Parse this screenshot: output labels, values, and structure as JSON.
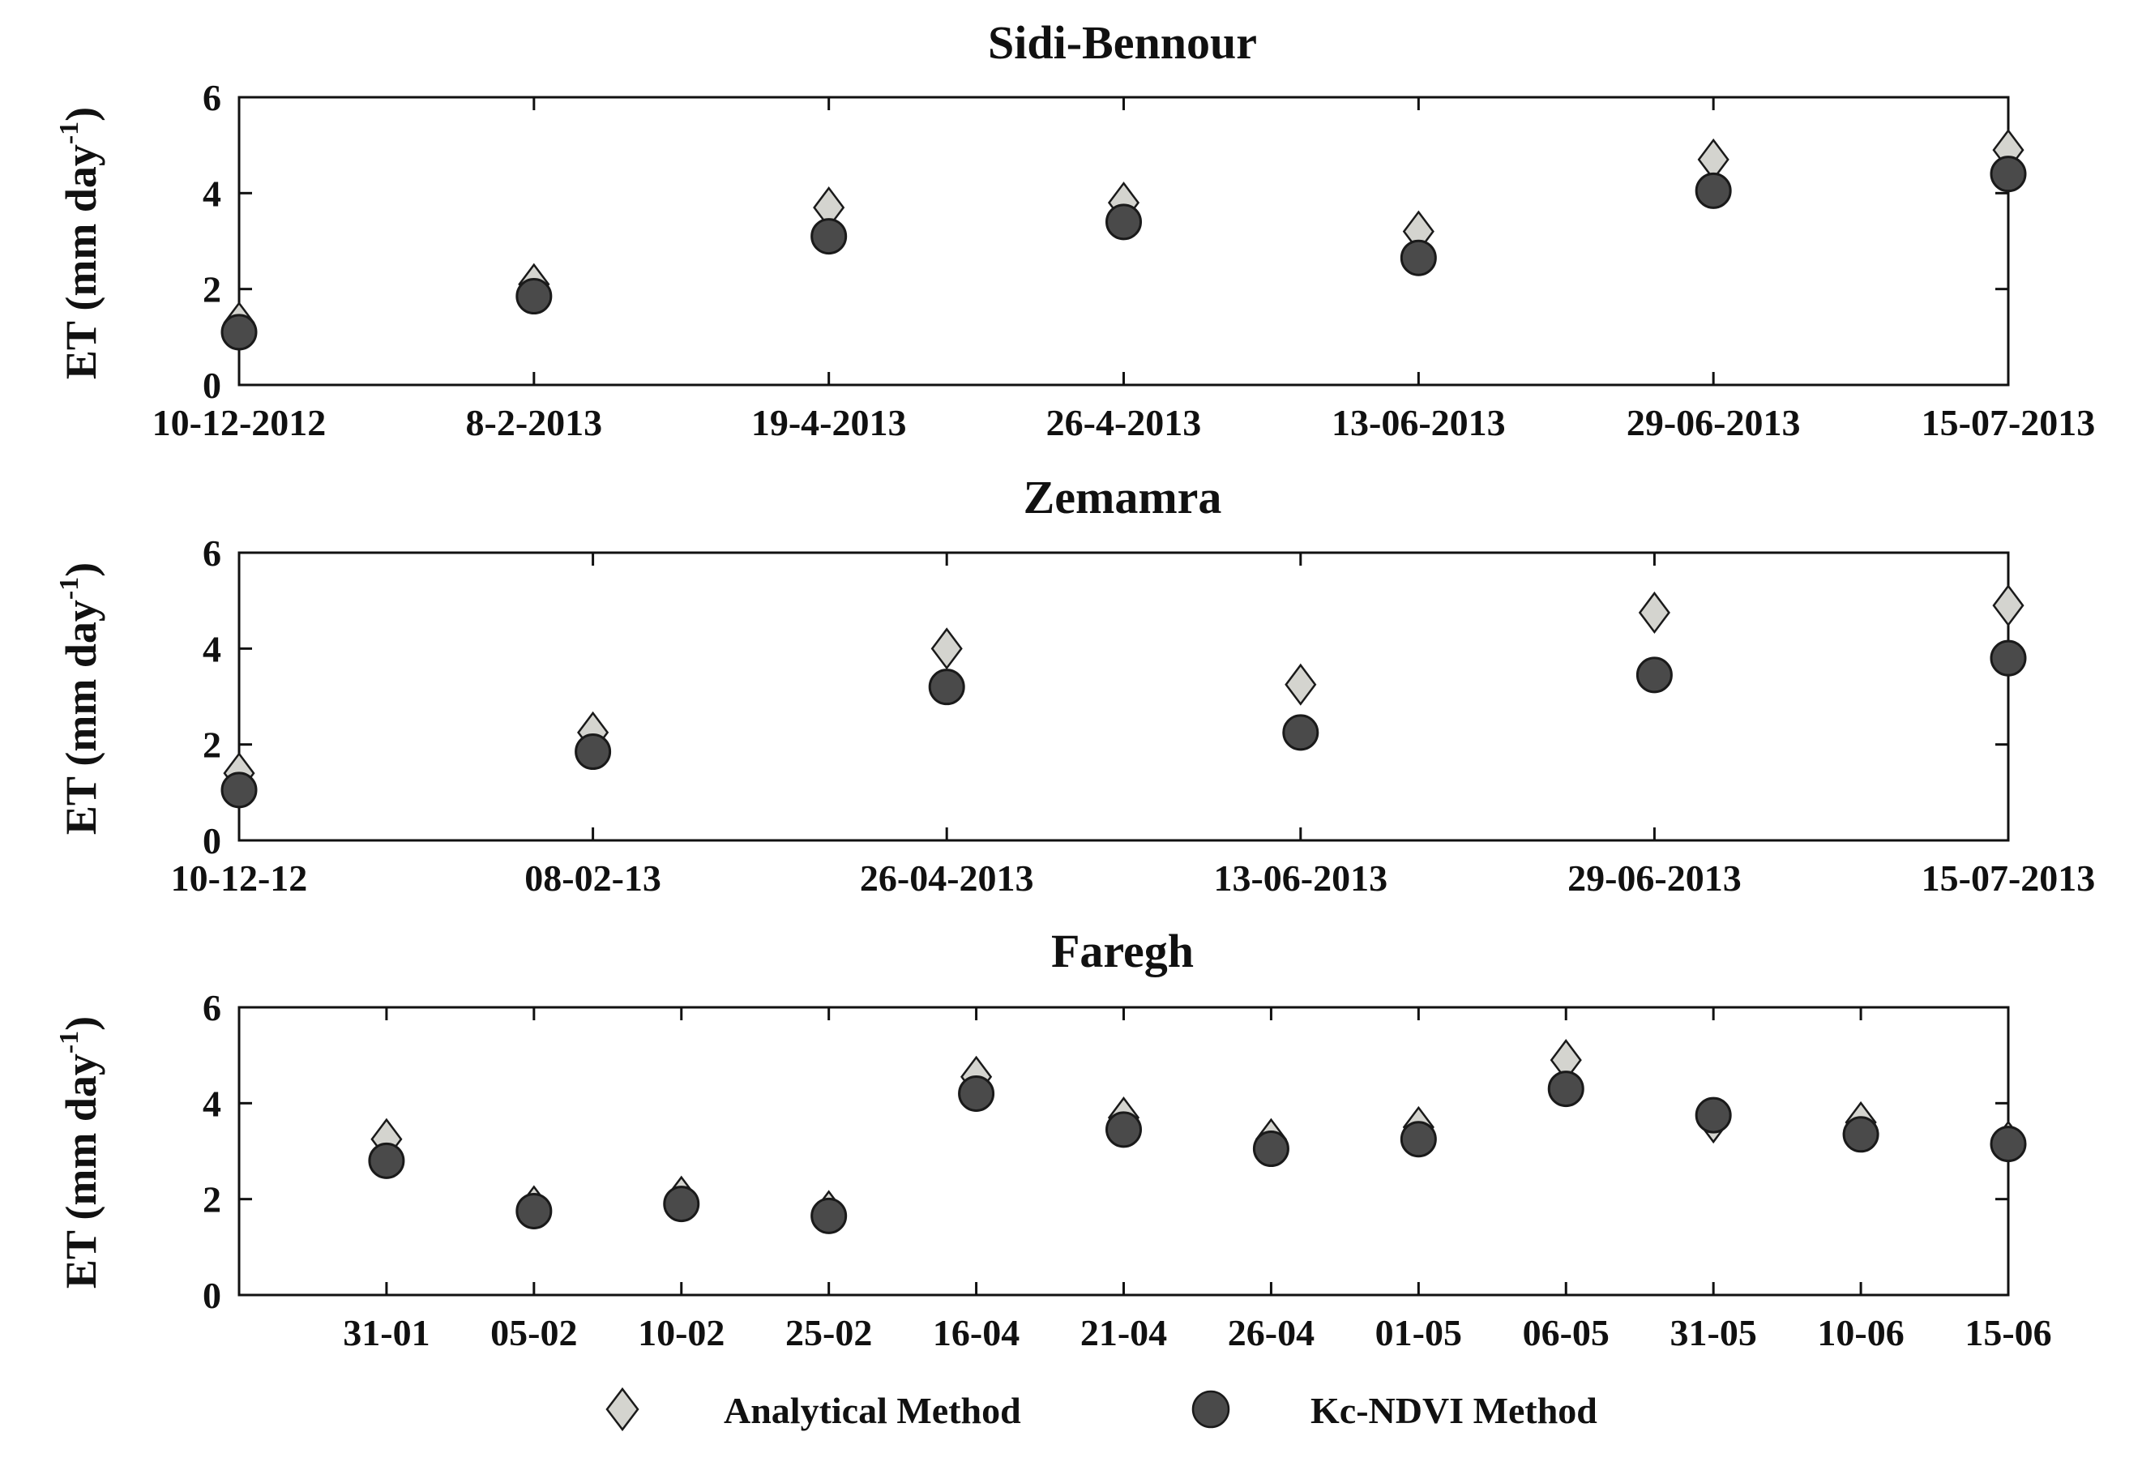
{
  "colors": {
    "analytical_fill": "#d4d4cf",
    "kcndvi_fill": "#4a4a4a",
    "marker_stroke": "#1a1a1a",
    "axis": "#111111",
    "text": "#111111"
  },
  "legend": {
    "analytical_label": "Analytical Method",
    "analytical_icon": "diamond-marker-icon",
    "kcndvi_label": "Kc-NDVI Method",
    "kcndvi_icon": "circle-marker-icon"
  },
  "chart_data": [
    {
      "type": "scatter",
      "title": "Sidi-Bennour",
      "ylabel": "ET (mm day-1)",
      "ylabel_main": "ET (mm day",
      "ylabel_sup": "-1",
      "ylabel_close": ")",
      "ylim": [
        0,
        6
      ],
      "yticks": [
        0,
        2,
        4,
        6
      ],
      "categories": [
        "10-12-2012",
        "8-2-2013",
        "19-4-2013",
        "26-4-2013",
        "13-06-2013",
        "29-06-2013",
        "15-07-2013"
      ],
      "category_positions": [
        0,
        1,
        2,
        3,
        4,
        5,
        6
      ],
      "xlim": [
        0,
        6
      ],
      "x_ticks_labelled": [
        0,
        1,
        2,
        3,
        4,
        5,
        6
      ],
      "series": [
        {
          "name": "Analytical Method",
          "marker": "diamond",
          "x": [
            0,
            1,
            2,
            3,
            4,
            5,
            6
          ],
          "values": [
            1.3,
            2.1,
            3.7,
            3.8,
            3.2,
            4.7,
            4.9
          ]
        },
        {
          "name": "Kc-NDVI Method",
          "marker": "circle",
          "x": [
            0,
            1,
            2,
            3,
            4,
            5,
            6
          ],
          "values": [
            1.1,
            1.85,
            3.1,
            3.4,
            2.65,
            4.05,
            4.4
          ]
        }
      ],
      "grid": false,
      "legend": "bottom-center"
    },
    {
      "type": "scatter",
      "title": "Zemamra",
      "ylabel": "ET (mm day-1)",
      "ylabel_main": "ET (mm day",
      "ylabel_sup": "-1",
      "ylabel_close": ")",
      "ylim": [
        0,
        6
      ],
      "yticks": [
        0,
        2,
        4,
        6
      ],
      "categories": [
        "10-12-12",
        "08-02-13",
        "26-04-2013",
        "13-06-2013",
        "29-06-2013",
        "15-07-2013"
      ],
      "category_positions": [
        0,
        1,
        2,
        3,
        4,
        5
      ],
      "xlim": [
        0,
        5
      ],
      "x_ticks_labelled": [
        0,
        1,
        2,
        3,
        4,
        5
      ],
      "series": [
        {
          "name": "Analytical Method",
          "marker": "diamond",
          "x": [
            0,
            1,
            2,
            3,
            4,
            5
          ],
          "values": [
            1.4,
            2.25,
            4.0,
            3.25,
            4.75,
            4.9
          ]
        },
        {
          "name": "Kc-NDVI Method",
          "marker": "circle",
          "x": [
            0,
            1,
            2,
            3,
            4,
            5
          ],
          "values": [
            1.05,
            1.85,
            3.2,
            2.25,
            3.45,
            3.8
          ]
        }
      ],
      "grid": false,
      "legend": "bottom-center"
    },
    {
      "type": "scatter",
      "title": "Faregh",
      "ylabel": "ET (mm day-1)",
      "ylabel_main": "ET (mm day",
      "ylabel_sup": "-1",
      "ylabel_close": ")",
      "ylim": [
        0,
        6
      ],
      "yticks": [
        0,
        2,
        4,
        6
      ],
      "categories": [
        "31-01",
        "05-02",
        "10-02",
        "25-02",
        "16-04",
        "21-04",
        "26-04",
        "01-05",
        "06-05",
        "31-05",
        "10-06",
        "15-06"
      ],
      "category_positions": [
        1,
        2,
        3,
        4,
        5,
        6,
        7,
        8,
        9,
        10,
        11,
        12
      ],
      "xlim": [
        0,
        12
      ],
      "x_ticks_labelled": [
        1,
        2,
        3,
        4,
        5,
        6,
        7,
        8,
        9,
        10,
        11,
        12
      ],
      "series": [
        {
          "name": "Analytical Method",
          "marker": "diamond",
          "x": [
            1,
            2,
            3,
            4,
            5,
            6,
            7,
            8,
            9,
            10,
            11,
            12
          ],
          "values": [
            3.25,
            1.85,
            2.05,
            1.75,
            4.55,
            3.7,
            3.25,
            3.5,
            4.9,
            3.6,
            3.6,
            3.2
          ]
        },
        {
          "name": "Kc-NDVI Method",
          "marker": "circle",
          "x": [
            1,
            2,
            3,
            4,
            5,
            6,
            7,
            8,
            9,
            10,
            11,
            12
          ],
          "values": [
            2.8,
            1.75,
            1.9,
            1.65,
            4.2,
            3.45,
            3.05,
            3.25,
            4.3,
            3.75,
            3.35,
            3.15
          ]
        }
      ],
      "grid": false,
      "legend": "bottom-center"
    }
  ]
}
